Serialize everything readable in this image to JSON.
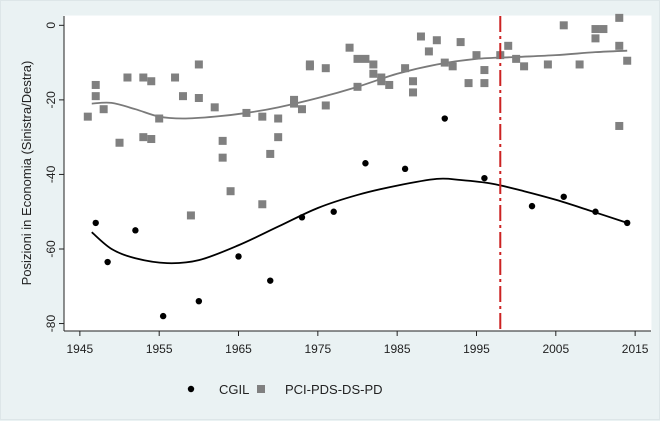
{
  "chart_data": {
    "type": "scatter",
    "xlabel": "",
    "ylabel": "Posizioni in Economia (Sinistra/Destra)",
    "xlim": [
      1943,
      2017
    ],
    "ylim": [
      -82,
      2.5
    ],
    "x_ticks": [
      "1945",
      "1955",
      "1965",
      "1975",
      "1985",
      "1995",
      "2005",
      "2015"
    ],
    "x_tick_values": [
      1945,
      1955,
      1965,
      1975,
      1985,
      1995,
      2005,
      2015
    ],
    "y_ticks": [
      "0",
      "-20",
      "-40",
      "-60",
      "-80"
    ],
    "y_tick_values": [
      0,
      -20,
      -40,
      -60,
      -80
    ],
    "grid": false,
    "legend_position": "bottom",
    "vertical_reference_line": {
      "x": 1998,
      "style": "dashed",
      "color": "#cc2222"
    },
    "series": [
      {
        "name": "CGIL",
        "marker": "circle",
        "color": "#000000",
        "points": [
          [
            1947,
            -53
          ],
          [
            1948.5,
            -63.5
          ],
          [
            1952,
            -55
          ],
          [
            1955.5,
            -78
          ],
          [
            1960,
            -74
          ],
          [
            1965,
            -62
          ],
          [
            1969,
            -68.5
          ],
          [
            1973,
            -51.5
          ],
          [
            1977,
            -50
          ],
          [
            1981,
            -37
          ],
          [
            1986,
            -38.5
          ],
          [
            1991,
            -25
          ],
          [
            1996,
            -41
          ],
          [
            2002,
            -48.5
          ],
          [
            2006,
            -46
          ],
          [
            2010,
            -50
          ],
          [
            2014,
            -53
          ]
        ],
        "trend": [
          [
            1946.5,
            -55.5
          ],
          [
            1949,
            -60
          ],
          [
            1952,
            -62.5
          ],
          [
            1956,
            -63.8
          ],
          [
            1960,
            -63
          ],
          [
            1965,
            -59
          ],
          [
            1970,
            -54
          ],
          [
            1975,
            -49
          ],
          [
            1980,
            -45.5
          ],
          [
            1985,
            -43
          ],
          [
            1990,
            -41.2
          ],
          [
            1993,
            -41.5
          ],
          [
            1997,
            -42.5
          ],
          [
            2001,
            -44.5
          ],
          [
            2005,
            -46.8
          ],
          [
            2009,
            -49.5
          ],
          [
            2014,
            -53
          ]
        ]
      },
      {
        "name": "PCI-PDS-DS-PD",
        "marker": "square",
        "color": "#808080",
        "points": [
          [
            1946,
            -24.5
          ],
          [
            1947,
            -16
          ],
          [
            1947,
            -19
          ],
          [
            1948,
            -22.5
          ],
          [
            1950,
            -31.5
          ],
          [
            1951,
            -14
          ],
          [
            1953,
            -30
          ],
          [
            1953,
            -14
          ],
          [
            1954,
            -15
          ],
          [
            1954,
            -30.5
          ],
          [
            1955,
            -25
          ],
          [
            1957,
            -14
          ],
          [
            1958,
            -19
          ],
          [
            1959,
            -51
          ],
          [
            1960,
            -10.5
          ],
          [
            1960,
            -19.5
          ],
          [
            1962,
            -22
          ],
          [
            1963,
            -31
          ],
          [
            1963,
            -35.5
          ],
          [
            1964,
            -44.5
          ],
          [
            1966,
            -23.5
          ],
          [
            1968,
            -24.5
          ],
          [
            1968,
            -48
          ],
          [
            1969,
            -34.5
          ],
          [
            1970,
            -30
          ],
          [
            1970,
            -25
          ],
          [
            1972,
            -20
          ],
          [
            1972,
            -21
          ],
          [
            1973,
            -22.5
          ],
          [
            1974,
            -10.5
          ],
          [
            1974,
            -11
          ],
          [
            1976,
            -11.5
          ],
          [
            1976,
            -21.5
          ],
          [
            1979,
            -6
          ],
          [
            1980,
            -9
          ],
          [
            1980,
            -16.5
          ],
          [
            1981,
            -9
          ],
          [
            1982,
            -10.5
          ],
          [
            1982,
            -13
          ],
          [
            1983,
            -14
          ],
          [
            1983,
            -15
          ],
          [
            1984,
            -16
          ],
          [
            1986,
            -11.5
          ],
          [
            1987,
            -15
          ],
          [
            1987,
            -18
          ],
          [
            1988,
            -3
          ],
          [
            1989,
            -7
          ],
          [
            1990,
            -4
          ],
          [
            1991,
            -10
          ],
          [
            1992,
            -11
          ],
          [
            1993,
            -4.5
          ],
          [
            1994,
            -15.5
          ],
          [
            1995,
            -8
          ],
          [
            1996,
            -12
          ],
          [
            1996,
            -15.5
          ],
          [
            1998,
            -8
          ],
          [
            1999,
            -5.5
          ],
          [
            2000,
            -9
          ],
          [
            2001,
            -11
          ],
          [
            2004,
            -10.5
          ],
          [
            2006,
            0
          ],
          [
            2008,
            -10.5
          ],
          [
            2010,
            -1
          ],
          [
            2010,
            -3.5
          ],
          [
            2011,
            -1
          ],
          [
            2013,
            2
          ],
          [
            2013,
            -5.5
          ],
          [
            2013,
            -27
          ],
          [
            2014,
            -9.5
          ]
        ],
        "trend": [
          [
            1946.5,
            -21
          ],
          [
            1949,
            -20.8
          ],
          [
            1952,
            -22.5
          ],
          [
            1955,
            -24.5
          ],
          [
            1958,
            -25
          ],
          [
            1962,
            -24.5
          ],
          [
            1966,
            -23.5
          ],
          [
            1970,
            -22
          ],
          [
            1975,
            -19.5
          ],
          [
            1980,
            -16.5
          ],
          [
            1985,
            -13
          ],
          [
            1990,
            -10.5
          ],
          [
            1995,
            -9
          ],
          [
            2000,
            -8.5
          ],
          [
            2005,
            -8
          ],
          [
            2010,
            -7.2
          ],
          [
            2014,
            -6.8
          ]
        ]
      }
    ]
  }
}
